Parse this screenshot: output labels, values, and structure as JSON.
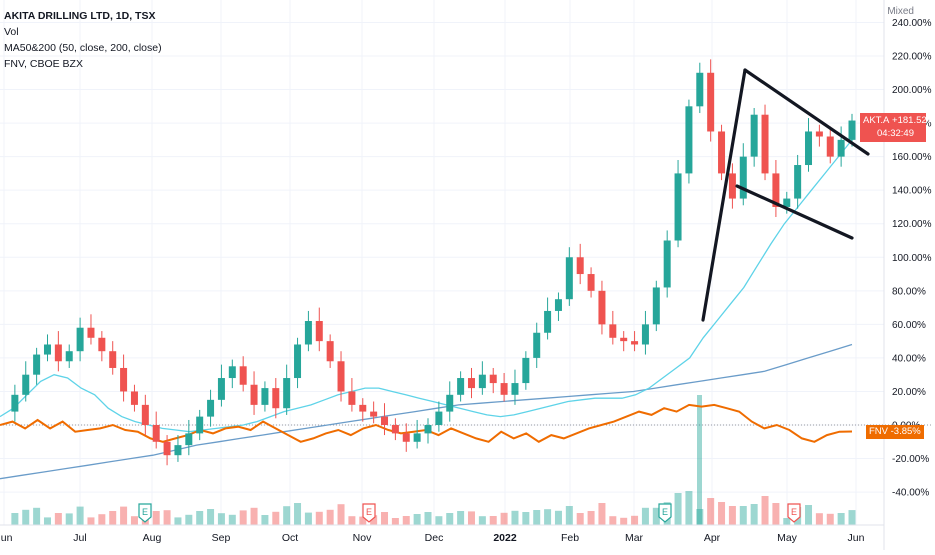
{
  "legend": {
    "title": "AKITA DRILLING LTD, 1D, TSX",
    "vol": "Vol",
    "ma": "MA50&200 (50, close, 200, close)",
    "compare": "FNV, CBOE BZX"
  },
  "scale_mode": "Mixed",
  "price_tag": {
    "symbol": "AKT.A",
    "value": "+181.52%",
    "countdown": "04:32:49"
  },
  "compare_tag": {
    "symbol": "FNV",
    "value": "-3.85%"
  },
  "colors": {
    "up": "#26a69a",
    "down": "#ef5350",
    "ma50": "#5ed3e8",
    "ma200": "#6a9cc9",
    "fnv": "#ef6c00",
    "trend": "#131722"
  },
  "chart_data": {
    "type": "line",
    "y_unit": "%",
    "ylim": [
      -50,
      240
    ],
    "y_ticks": [
      "-40.00%",
      "-20.00%",
      "0.00%",
      "20.00%",
      "40.00%",
      "60.00%",
      "80.00%",
      "100.00%",
      "120.00%",
      "140.00%",
      "160.00%",
      "180.00%",
      "200.00%",
      "220.00%",
      "240.00%"
    ],
    "x_ticks": [
      "Jun",
      "Jul",
      "Aug",
      "Sep",
      "Oct",
      "Nov",
      "Dec",
      "2022",
      "Feb",
      "Mar",
      "Apr",
      "May",
      "Jun"
    ],
    "series": [
      {
        "name": "AKT.A",
        "values": [
          8,
          18,
          30,
          42,
          48,
          38,
          44,
          58,
          52,
          44,
          34,
          20,
          12,
          0,
          -10,
          -18,
          -12,
          -5,
          5,
          15,
          28,
          35,
          24,
          12,
          22,
          10,
          28,
          48,
          62,
          50,
          38,
          20,
          12,
          8,
          5,
          0,
          -5,
          -10,
          -5,
          0,
          8,
          18,
          28,
          22,
          30,
          25,
          18,
          25,
          40,
          55,
          68,
          75,
          100,
          90,
          80,
          60,
          52,
          50,
          48,
          60,
          82,
          110,
          150,
          190,
          210,
          175,
          150,
          135,
          160,
          185,
          150,
          130,
          135,
          155,
          175,
          172,
          160,
          170,
          181.52
        ]
      },
      {
        "name": "MA50",
        "values": [
          5,
          10,
          18,
          26,
          30,
          28,
          22,
          18,
          10,
          5,
          2,
          0,
          -2,
          -3,
          -4,
          -3,
          -2,
          -1,
          0,
          2,
          5,
          8,
          10,
          12,
          15,
          18,
          20,
          22,
          22,
          20,
          18,
          16,
          14,
          12,
          10,
          8,
          6,
          5,
          6,
          8,
          10,
          12,
          14,
          15,
          16,
          16,
          16,
          18,
          22,
          28,
          34,
          40,
          52,
          62,
          72,
          82,
          95,
          108,
          120,
          130,
          140,
          150,
          160,
          170
        ]
      },
      {
        "name": "MA200",
        "values": [
          -32,
          -30,
          -28,
          -26,
          -24,
          -22,
          -20,
          -18,
          -15,
          -12,
          -10,
          -8,
          -6,
          -4,
          -2,
          0,
          2,
          4,
          6,
          8,
          10,
          12,
          13,
          14,
          15,
          16,
          17,
          18,
          19,
          20,
          22,
          24,
          26,
          28,
          30,
          32,
          36,
          40,
          44,
          48
        ]
      },
      {
        "name": "FNV",
        "values": [
          0,
          2,
          -2,
          3,
          -2,
          2,
          -4,
          -3,
          -2,
          0,
          -3,
          -4,
          -8,
          -10,
          -8,
          -6,
          -3,
          -5,
          -2,
          -1,
          -3,
          2,
          -2,
          -6,
          -10,
          -8,
          -5,
          -3,
          -6,
          -2,
          0,
          -3,
          -5,
          -4,
          -3,
          -6,
          -2,
          -5,
          -8,
          -10,
          -4,
          -8,
          -5,
          -10,
          -6,
          -8,
          -5,
          -2,
          0,
          2,
          5,
          8,
          6,
          10,
          8,
          12,
          11,
          12,
          10,
          8,
          2,
          -2,
          0,
          -3,
          -8,
          -10,
          -6,
          -4,
          -3.85
        ]
      }
    ],
    "annotations": [
      "E",
      "E",
      "E",
      "E"
    ],
    "trend_lines": [
      {
        "from": [
          "Mar",
          64
        ],
        "to": [
          "Apr",
          210
        ]
      },
      {
        "from": [
          "Apr",
          210
        ],
        "to": [
          "Jun",
          162
        ]
      },
      {
        "from": [
          "Apr",
          140
        ],
        "to": [
          "Jun",
          112
        ]
      }
    ]
  }
}
